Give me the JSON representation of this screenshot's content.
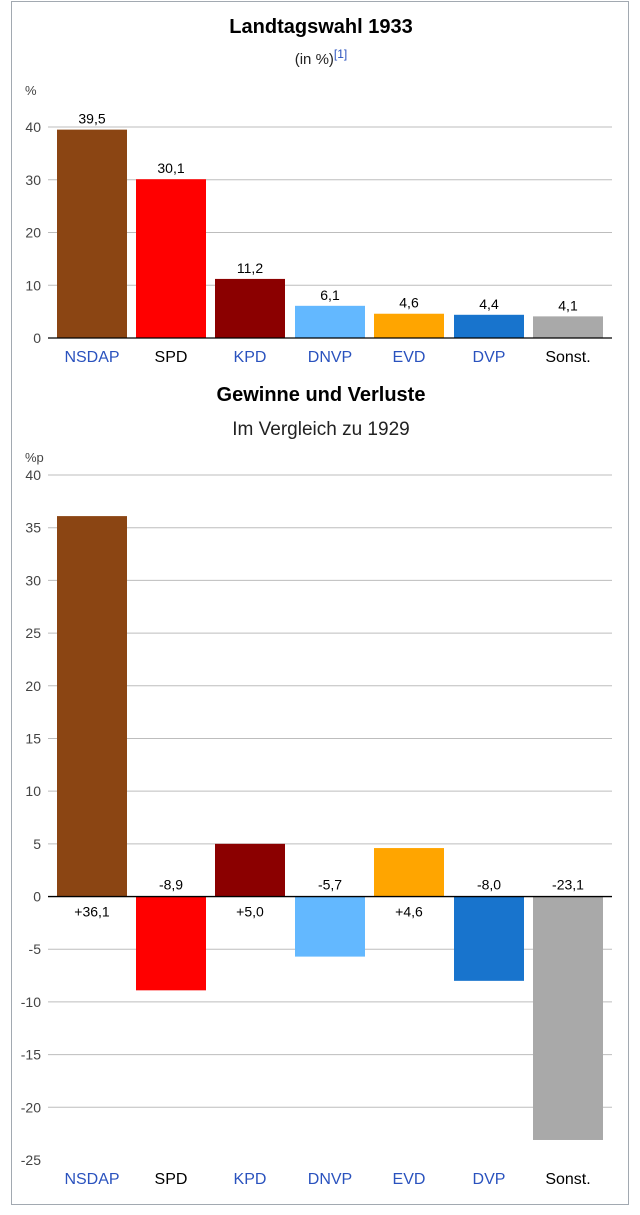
{
  "colors": {
    "grid": "#bdbdbd",
    "axis": "#000000",
    "tick_text": "#444444",
    "link": "#2a52be"
  },
  "chart_data": [
    {
      "type": "bar",
      "title": "Landtagswahl 1933",
      "subtitle": "(in %)",
      "subtitle_ref": "[1]",
      "ylabel": "%",
      "ylim": [
        0,
        40
      ],
      "yticks": [
        0,
        10,
        20,
        30,
        40
      ],
      "grid": true,
      "categories": [
        "NSDAP",
        "SPD",
        "KPD",
        "DNVP",
        "EVD",
        "DVP",
        "Sonst."
      ],
      "category_links": [
        true,
        false,
        true,
        true,
        true,
        true,
        false
      ],
      "values": [
        39.5,
        30.1,
        11.2,
        6.1,
        4.6,
        4.4,
        4.1
      ],
      "labels": [
        "39,5",
        "30,1",
        "11,2",
        "6,1",
        "4,6",
        "4,4",
        "4,1"
      ],
      "colors": [
        "#8b4513",
        "#ff0000",
        "#8b0000",
        "#63b8ff",
        "#ffa500",
        "#1874cd",
        "#a9a9a9"
      ]
    },
    {
      "type": "bar",
      "title": "Gewinne und Verluste",
      "subtitle": "Im Vergleich zu 1929",
      "ylabel": "%p",
      "ylim": [
        -25,
        40
      ],
      "yticks": [
        -25,
        -20,
        -15,
        -10,
        -5,
        0,
        5,
        10,
        15,
        20,
        25,
        30,
        35,
        40
      ],
      "grid": true,
      "categories": [
        "NSDAP",
        "SPD",
        "KPD",
        "DNVP",
        "EVD",
        "DVP",
        "Sonst."
      ],
      "category_links": [
        true,
        false,
        true,
        true,
        true,
        true,
        false
      ],
      "values": [
        36.1,
        -8.9,
        5.0,
        -5.7,
        4.6,
        -8.0,
        -23.1
      ],
      "labels": [
        "+36,1",
        "-8,9",
        "+5,0",
        "-5,7",
        "+4,6",
        "-8,0",
        "-23,1"
      ],
      "colors": [
        "#8b4513",
        "#ff0000",
        "#8b0000",
        "#63b8ff",
        "#ffa500",
        "#1874cd",
        "#a9a9a9"
      ]
    }
  ]
}
